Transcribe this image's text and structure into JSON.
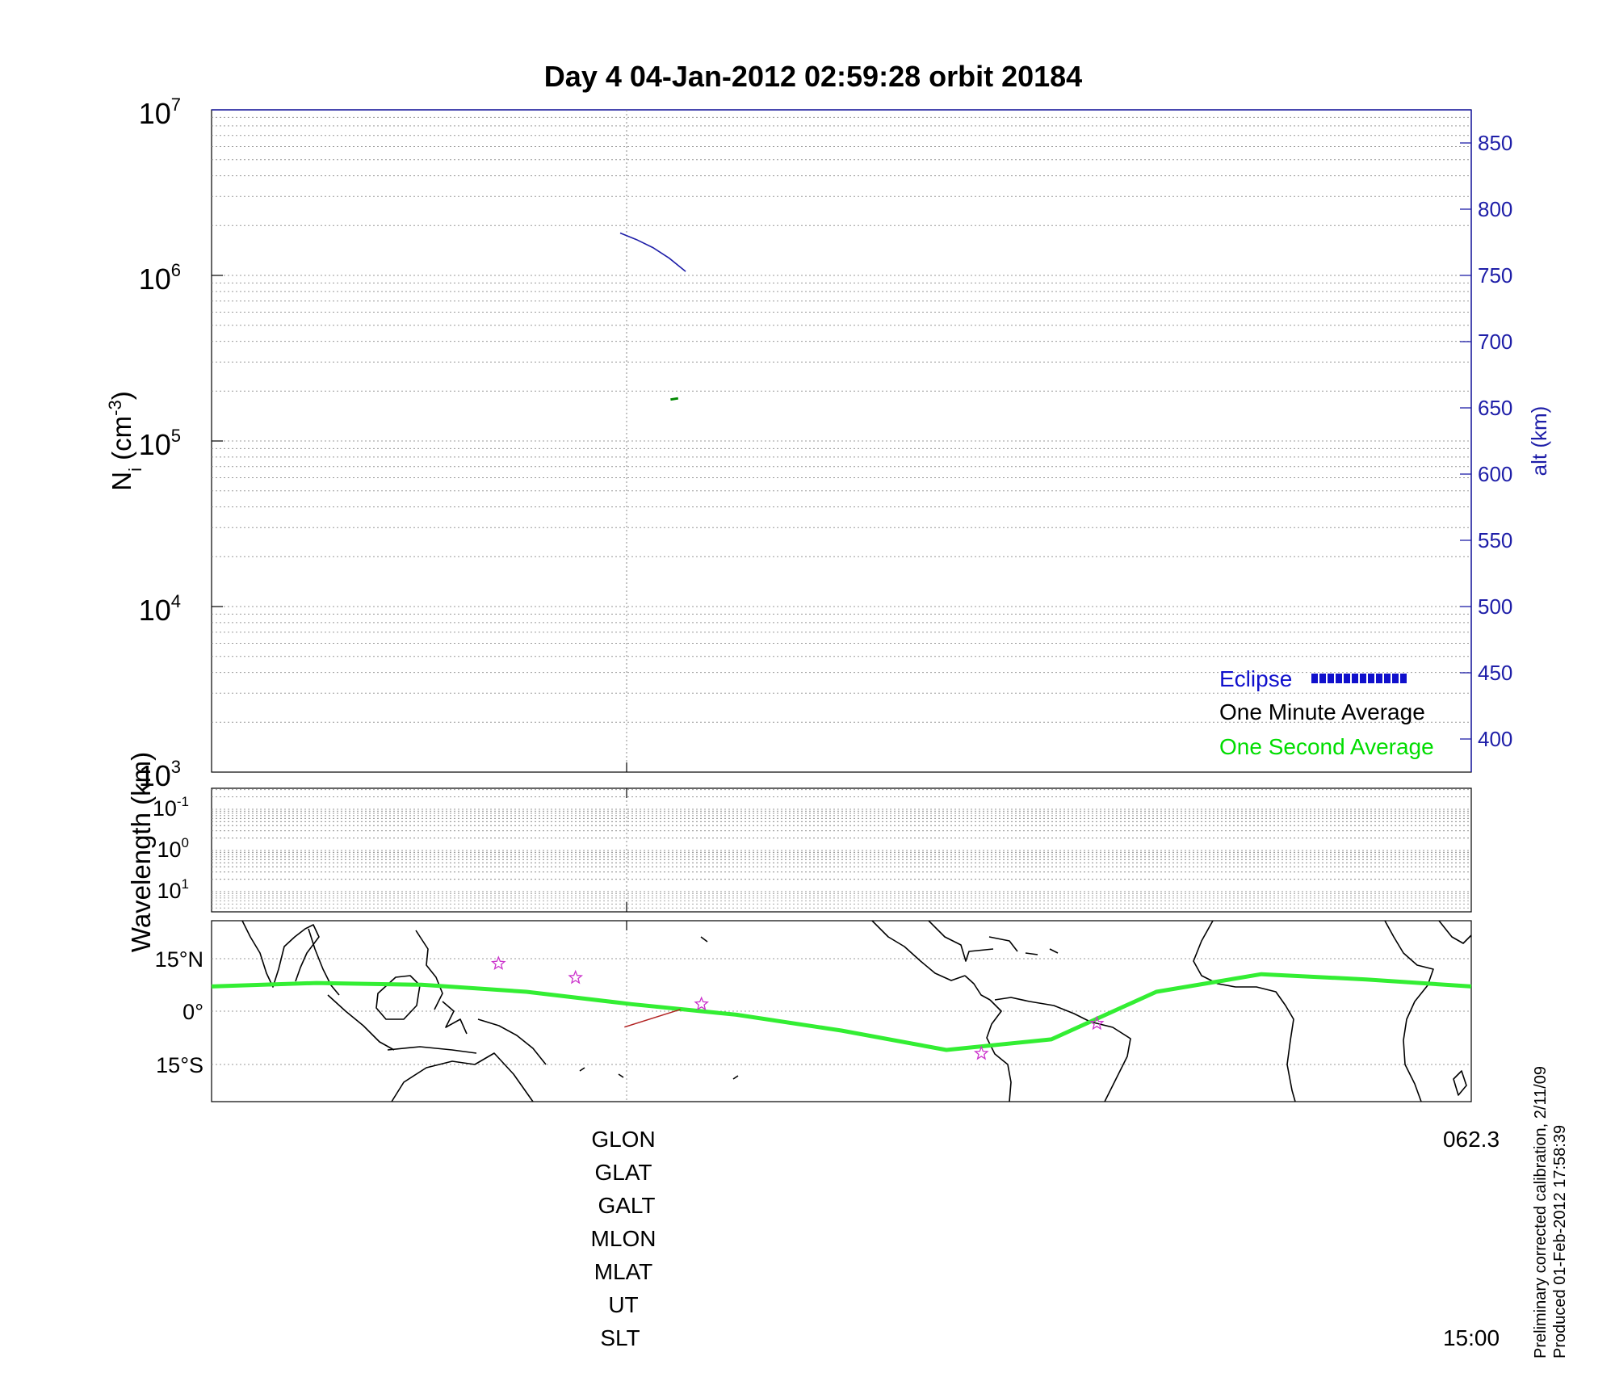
{
  "title": "Day 4  04-Jan-2012 02:59:28   orbit 20184",
  "chart_data": [
    {
      "type": "line",
      "panel": "ion-density",
      "ylabel_main": "N",
      "ylabel_sub": "i",
      "ylabel_unit_pre": " (cm",
      "ylabel_unit_sup": "-3",
      "ylabel_unit_post": ")",
      "yscale": "log",
      "ylim": [
        1000,
        10000000
      ],
      "ytick_exponents": [
        "3",
        "4",
        "5",
        "6",
        "7"
      ],
      "ytick_base": "10",
      "y2label": "alt (km)",
      "y2lim": [
        375,
        875
      ],
      "y2ticks": [
        "400",
        "450",
        "500",
        "550",
        "600",
        "650",
        "700",
        "750",
        "800",
        "850"
      ],
      "grid": true,
      "x": [
        0.0,
        0.013,
        0.026,
        0.039,
        0.052
      ],
      "series": [
        {
          "name": "One Second Average",
          "color": "#00cc00",
          "x": [
            0.04,
            0.044,
            0.046
          ],
          "values": [
            178000,
            180000,
            181000
          ]
        }
      ],
      "altitude": {
        "color": "#1e1ea8",
        "x": [
          0.0,
          0.013,
          0.026,
          0.039,
          0.052
        ],
        "values": [
          782,
          777,
          771,
          763,
          753
        ]
      },
      "legend": {
        "position": "lower-right",
        "items": [
          {
            "label": "Eclipse",
            "color": "#1010cc",
            "marker": "blue-squares"
          },
          {
            "label": "One Minute Average",
            "color": "#000000"
          },
          {
            "label": "One Second Average",
            "color": "#00dd00"
          }
        ]
      }
    },
    {
      "type": "heatmap",
      "panel": "wavelength",
      "ylabel": "Wavelength (km)",
      "ytick_base": "10",
      "ytick_exponents": [
        "-1",
        "0",
        "1"
      ],
      "grid": true
    },
    {
      "type": "line",
      "panel": "orbit-map",
      "yticks": [
        "15°N",
        "0°",
        "15°S"
      ],
      "ylim": [
        -25,
        25
      ],
      "xlim": [
        60,
        420
      ],
      "satellite_track": {
        "color": "#33ee33",
        "lon": [
          60,
          90,
          120,
          150,
          180,
          210,
          240,
          270,
          300,
          330,
          360,
          390,
          420
        ],
        "lat": [
          7.0,
          8.0,
          7.5,
          5.5,
          2.0,
          -1.0,
          -5.5,
          -11.0,
          -8.0,
          5.5,
          10.5,
          9.0,
          7.0
        ]
      },
      "stars": [
        {
          "lon": 142,
          "lat": 13.5
        },
        {
          "lon": 164,
          "lat": 9.5
        },
        {
          "lon": 200,
          "lat": 2.0
        },
        {
          "lon": 280,
          "lat": -12.0
        },
        {
          "lon": 313,
          "lat": -3.5
        }
      ],
      "red_segment": {
        "lon": [
          178,
          194
        ],
        "lat": [
          -4.5,
          0.5
        ],
        "color": "#b22222"
      }
    }
  ],
  "bottom_labels": {
    "rows": [
      "GLON",
      "GLAT",
      "GALT",
      "MLON",
      "MLAT",
      "UT",
      "SLT"
    ],
    "glon_value": "062.3",
    "slt_value": "15:00"
  },
  "footer": {
    "line1": "Preliminary corrected calibration, 2/11/09",
    "line2": "Produced 01-Feb-2012 17:58:39"
  }
}
